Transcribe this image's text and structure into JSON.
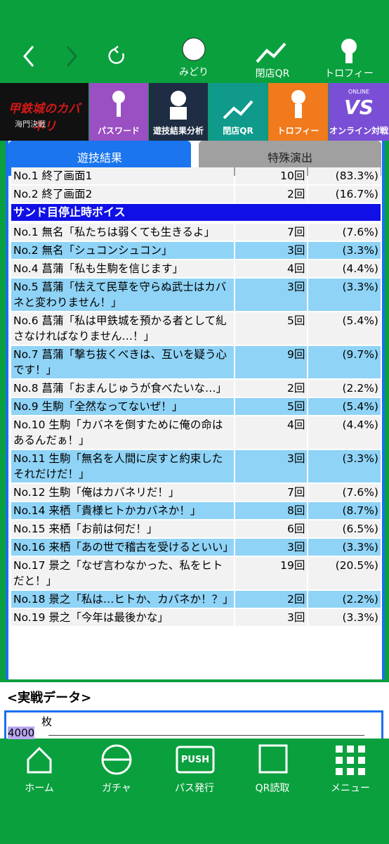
{
  "top_nav": {
    "items": [
      "みどり",
      "閉店QR",
      "トロフィー"
    ]
  },
  "banners": {
    "logo": [
      "甲鉄城のカバネリ",
      "海門決戦"
    ],
    "items": [
      "パスワード",
      "遊技結果分析",
      "閉店QR",
      "トロフィー",
      "オンライン対戦"
    ],
    "online_icon": [
      "ONLINE",
      "VS"
    ]
  },
  "tabs": [
    "遊技結果",
    "特殊演出"
  ],
  "table": {
    "groups": [
      {
        "rows": [
          [
            "No.1 終了画面1",
            "10回",
            "(83.3%)"
          ],
          [
            "No.2 終了画面2",
            "2回",
            "(16.7%)"
          ]
        ]
      },
      {
        "title": "サンド目停止時ボイス",
        "rows": [
          [
            "No.1 無名「私たちは弱くても生きるよ」",
            "7回",
            "(7.6%)"
          ],
          [
            "No.2 無名「シュコンシュコン」",
            "3回",
            "(3.3%)"
          ],
          [
            "No.4 菖蒲「私も生駒を信じます」",
            "4回",
            "(4.4%)"
          ],
          [
            "No.5 菖蒲「怯えて民草を守らぬ武士はカバネと変わりません！」",
            "3回",
            "(3.3%)"
          ],
          [
            "No.6 菖蒲「私は甲鉄城を預かる者として糺さなければなりません…！」",
            "5回",
            "(5.4%)"
          ],
          [
            "No.7 菖蒲「撃ち抜くべきは、互いを疑う心です！」",
            "9回",
            "(9.7%)"
          ],
          [
            "No.8 菖蒲「おまんじゅうが食べたいな…」",
            "2回",
            "(2.2%)"
          ],
          [
            "No.9 生駒「全然なってないぜ！」",
            "5回",
            "(5.4%)"
          ],
          [
            "No.10 生駒「カバネを倒すために俺の命はあるんだぁ！」",
            "4回",
            "(4.4%)"
          ],
          [
            "No.11 生駒「無名を人間に戻すと約束した　それだけだ！」",
            "3回",
            "(3.3%)"
          ],
          [
            "No.12 生駒「俺はカバネリだ！」",
            "7回",
            "(7.6%)"
          ],
          [
            "No.14 来栖「貴様ヒトかカバネか！」",
            "8回",
            "(8.7%)"
          ],
          [
            "No.15 来栖「お前は何だ！」",
            "6回",
            "(6.5%)"
          ],
          [
            "No.16 来栖「あの世で稽古を受けるといい」",
            "3回",
            "(3.3%)"
          ],
          [
            "No.17 景之「なぜ言わなかった、私をヒトだと！」",
            "19回",
            "(20.5%)"
          ],
          [
            "No.18 景之「私は…ヒトか、カバネか！？」",
            "2回",
            "(2.2%)"
          ],
          [
            "No.19 景之「今年は最後かな」",
            "3回",
            "(3.3%)"
          ]
        ]
      }
    ]
  },
  "data_section": {
    "title": "<実戦データ>",
    "unit": "枚",
    "y_label": "4000"
  },
  "bottom_nav": {
    "items": [
      "ホーム",
      "ガチャ",
      "パス発行",
      "QR読取",
      "メニュー"
    ],
    "push_icon": "PUSH"
  }
}
